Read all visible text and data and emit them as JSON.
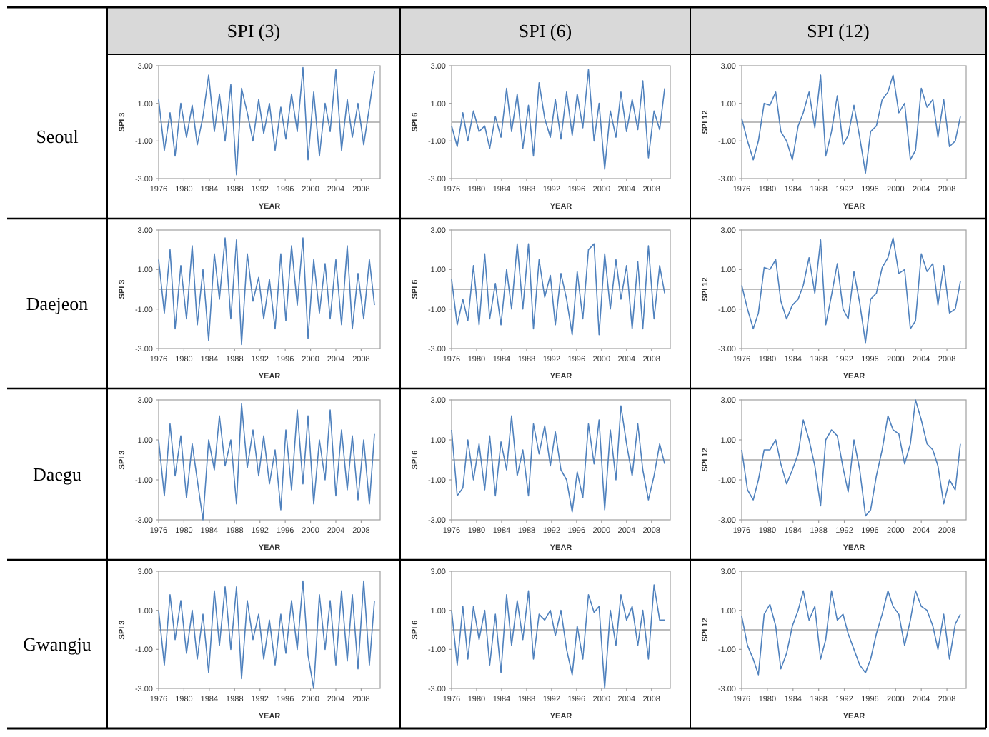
{
  "chart_data": [
    {
      "type": "line",
      "title": "SPI (3)",
      "annotations": [
        "Seoul"
      ],
      "xlabel": "YEAR",
      "ylabel": "SPI 3",
      "x": [
        1976,
        1976.9,
        1977.8,
        1978.6,
        1979.5,
        1980.4,
        1981.3,
        1982.1,
        1983,
        1983.9,
        1984.8,
        1985.6,
        1986.5,
        1987.4,
        1988.3,
        1989.1,
        1990,
        1990.9,
        1991.8,
        1992.6,
        1993.5,
        1994.4,
        1995.3,
        1996.1,
        1997,
        1997.9,
        1998.8,
        1999.6,
        2000.5,
        2001.4,
        2002.3,
        2003.1,
        2004,
        2004.9,
        2005.8,
        2006.6,
        2007.5,
        2008.4,
        2009.3,
        2010.1
      ],
      "xlim": [
        1976,
        2011
      ],
      "xticks": [
        1976,
        1980,
        1984,
        1988,
        1992,
        1996,
        2000,
        2004,
        2008
      ],
      "ylim": [
        -3,
        3
      ],
      "yticks": [
        {
          "value": -3,
          "label": "-3.00"
        },
        {
          "value": -1,
          "label": "-1.00"
        },
        {
          "value": 1,
          "label": "1.00"
        },
        {
          "value": 3,
          "label": "3.00"
        }
      ],
      "ref_lines": [
        {
          "axis": "y",
          "value": 0,
          "color": "#a6a6a6"
        }
      ],
      "series": [
        {
          "color": "#4f81bd",
          "values": [
            1.2,
            -1.5,
            0.5,
            -1.8,
            1.0,
            -0.8,
            0.9,
            -1.2,
            0.3,
            2.5,
            -0.5,
            1.5,
            -1.0,
            2.0,
            -2.8,
            1.8,
            0.5,
            -1.0,
            1.2,
            -0.6,
            1.0,
            -1.5,
            0.8,
            -0.9,
            1.5,
            -0.5,
            2.9,
            -2.0,
            1.6,
            -1.8,
            1.0,
            -0.5,
            2.8,
            -1.5,
            1.2,
            -0.8,
            1.0,
            -1.2,
            0.8,
            2.7
          ]
        }
      ]
    },
    {
      "type": "line",
      "title": "SPI (6)",
      "xlabel": "YEAR",
      "ylabel": "SPI 6",
      "x": [
        1976,
        1976.9,
        1977.8,
        1978.6,
        1979.5,
        1980.4,
        1981.3,
        1982.1,
        1983,
        1983.9,
        1984.8,
        1985.6,
        1986.5,
        1987.4,
        1988.3,
        1989.1,
        1990,
        1990.9,
        1991.8,
        1992.6,
        1993.5,
        1994.4,
        1995.3,
        1996.1,
        1997,
        1997.9,
        1998.8,
        1999.6,
        2000.5,
        2001.4,
        2002.3,
        2003.1,
        2004,
        2004.9,
        2005.8,
        2006.6,
        2007.5,
        2008.4,
        2009.3,
        2010.1
      ],
      "xlim": [
        1976,
        2011
      ],
      "xticks": [
        1976,
        1980,
        1984,
        1988,
        1992,
        1996,
        2000,
        2004,
        2008
      ],
      "ylim": [
        -3,
        3
      ],
      "yticks": [
        {
          "value": -3,
          "label": "-3.00"
        },
        {
          "value": -1,
          "label": "-1.00"
        },
        {
          "value": 1,
          "label": "1.00"
        },
        {
          "value": 3,
          "label": "3.00"
        }
      ],
      "ref_lines": [
        {
          "axis": "y",
          "value": 0,
          "color": "#a6a6a6"
        }
      ],
      "series": [
        {
          "color": "#4f81bd",
          "values": [
            -0.2,
            -1.3,
            0.5,
            -1.0,
            0.6,
            -0.5,
            -0.2,
            -1.4,
            0.3,
            -0.8,
            1.8,
            -0.5,
            1.5,
            -1.4,
            0.9,
            -1.8,
            2.1,
            0.2,
            -0.8,
            1.2,
            -0.9,
            1.6,
            -0.7,
            1.5,
            -0.3,
            2.8,
            -1.0,
            1.0,
            -2.5,
            0.6,
            -0.8,
            1.6,
            -0.5,
            1.2,
            -0.4,
            2.2,
            -1.9,
            0.6,
            -0.4,
            1.8
          ]
        }
      ]
    },
    {
      "type": "line",
      "title": "SPI (12)",
      "xlabel": "YEAR",
      "ylabel": "SPI 12",
      "x": [
        1976,
        1976.9,
        1977.8,
        1978.6,
        1979.5,
        1980.4,
        1981.3,
        1982.1,
        1983,
        1983.9,
        1984.8,
        1985.6,
        1986.5,
        1987.4,
        1988.3,
        1989.1,
        1990,
        1990.9,
        1991.8,
        1992.6,
        1993.5,
        1994.4,
        1995.3,
        1996.1,
        1997,
        1997.9,
        1998.8,
        1999.6,
        2000.5,
        2001.4,
        2002.3,
        2003.1,
        2004,
        2004.9,
        2005.8,
        2006.6,
        2007.5,
        2008.4,
        2009.3,
        2010.1
      ],
      "xlim": [
        1976,
        2011
      ],
      "xticks": [
        1976,
        1980,
        1984,
        1988,
        1992,
        1996,
        2000,
        2004,
        2008
      ],
      "ylim": [
        -3,
        3
      ],
      "yticks": [
        {
          "value": -3,
          "label": "-3.00"
        },
        {
          "value": -1,
          "label": "-1.00"
        },
        {
          "value": 1,
          "label": "1.00"
        },
        {
          "value": 3,
          "label": "3.00"
        }
      ],
      "ref_lines": [
        {
          "axis": "y",
          "value": 0,
          "color": "#a6a6a6"
        }
      ],
      "series": [
        {
          "color": "#4f81bd",
          "values": [
            0.2,
            -1.0,
            -2.0,
            -1.0,
            1.0,
            0.9,
            1.6,
            -0.5,
            -1.0,
            -2.0,
            -0.2,
            0.5,
            1.6,
            -0.3,
            2.5,
            -1.8,
            -0.5,
            1.4,
            -1.2,
            -0.7,
            0.9,
            -0.8,
            -2.7,
            -0.5,
            -0.2,
            1.2,
            1.6,
            2.5,
            0.5,
            1.0,
            -2.0,
            -1.5,
            1.8,
            0.8,
            1.2,
            -0.8,
            1.2,
            -1.3,
            -1.0,
            0.3
          ]
        }
      ]
    },
    {
      "type": "line",
      "annotations": [
        "Daejeon"
      ],
      "xlabel": "YEAR",
      "ylabel": "SPI 3",
      "x": [
        1976,
        1976.9,
        1977.8,
        1978.6,
        1979.5,
        1980.4,
        1981.3,
        1982.1,
        1983,
        1983.9,
        1984.8,
        1985.6,
        1986.5,
        1987.4,
        1988.3,
        1989.1,
        1990,
        1990.9,
        1991.8,
        1992.6,
        1993.5,
        1994.4,
        1995.3,
        1996.1,
        1997,
        1997.9,
        1998.8,
        1999.6,
        2000.5,
        2001.4,
        2002.3,
        2003.1,
        2004,
        2004.9,
        2005.8,
        2006.6,
        2007.5,
        2008.4,
        2009.3,
        2010.1
      ],
      "xlim": [
        1976,
        2011
      ],
      "xticks": [
        1976,
        1980,
        1984,
        1988,
        1992,
        1996,
        2000,
        2004,
        2008
      ],
      "ylim": [
        -3,
        3
      ],
      "yticks": [
        {
          "value": -3,
          "label": "-3.00"
        },
        {
          "value": -1,
          "label": "-1.00"
        },
        {
          "value": 1,
          "label": "1.00"
        },
        {
          "value": 3,
          "label": "3.00"
        }
      ],
      "ref_lines": [
        {
          "axis": "y",
          "value": 0,
          "color": "#a6a6a6"
        }
      ],
      "series": [
        {
          "color": "#4f81bd",
          "values": [
            1.5,
            -1.2,
            2.0,
            -2.0,
            1.2,
            -1.5,
            2.2,
            -1.8,
            1.0,
            -2.6,
            1.8,
            -0.5,
            2.6,
            -1.5,
            2.5,
            -2.8,
            1.8,
            -0.6,
            0.6,
            -1.5,
            0.5,
            -2.0,
            1.8,
            -1.6,
            2.2,
            -0.8,
            2.6,
            -2.5,
            1.5,
            -1.2,
            1.3,
            -1.5,
            1.5,
            -1.8,
            2.2,
            -2.0,
            0.8,
            -1.5,
            1.5,
            -0.8
          ]
        }
      ]
    },
    {
      "type": "line",
      "xlabel": "YEAR",
      "ylabel": "SPI 6",
      "x": [
        1976,
        1976.9,
        1977.8,
        1978.6,
        1979.5,
        1980.4,
        1981.3,
        1982.1,
        1983,
        1983.9,
        1984.8,
        1985.6,
        1986.5,
        1987.4,
        1988.3,
        1989.1,
        1990,
        1990.9,
        1991.8,
        1992.6,
        1993.5,
        1994.4,
        1995.3,
        1996.1,
        1997,
        1997.9,
        1998.8,
        1999.6,
        2000.5,
        2001.4,
        2002.3,
        2003.1,
        2004,
        2004.9,
        2005.8,
        2006.6,
        2007.5,
        2008.4,
        2009.3,
        2010.1
      ],
      "xlim": [
        1976,
        2011
      ],
      "xticks": [
        1976,
        1980,
        1984,
        1988,
        1992,
        1996,
        2000,
        2004,
        2008
      ],
      "ylim": [
        -3,
        3
      ],
      "yticks": [
        {
          "value": -3,
          "label": "-3.00"
        },
        {
          "value": -1,
          "label": "-1.00"
        },
        {
          "value": 1,
          "label": "1.00"
        },
        {
          "value": 3,
          "label": "3.00"
        }
      ],
      "ref_lines": [
        {
          "axis": "y",
          "value": 0,
          "color": "#a6a6a6"
        }
      ],
      "series": [
        {
          "color": "#4f81bd",
          "values": [
            0.5,
            -1.8,
            -0.5,
            -1.6,
            1.2,
            -1.8,
            1.8,
            -1.5,
            0.3,
            -1.8,
            1.0,
            -1.0,
            2.3,
            -1.0,
            2.3,
            -2.0,
            1.5,
            -0.4,
            0.7,
            -1.8,
            0.8,
            -0.5,
            -2.3,
            0.9,
            -1.5,
            2.0,
            2.3,
            -2.3,
            1.8,
            -1.0,
            1.5,
            -0.5,
            1.2,
            -2.0,
            1.4,
            -2.0,
            2.2,
            -1.5,
            1.2,
            -0.2
          ]
        }
      ]
    },
    {
      "type": "line",
      "xlabel": "YEAR",
      "ylabel": "SPI 12",
      "x": [
        1976,
        1976.9,
        1977.8,
        1978.6,
        1979.5,
        1980.4,
        1981.3,
        1982.1,
        1983,
        1983.9,
        1984.8,
        1985.6,
        1986.5,
        1987.4,
        1988.3,
        1989.1,
        1990,
        1990.9,
        1991.8,
        1992.6,
        1993.5,
        1994.4,
        1995.3,
        1996.1,
        1997,
        1997.9,
        1998.8,
        1999.6,
        2000.5,
        2001.4,
        2002.3,
        2003.1,
        2004,
        2004.9,
        2005.8,
        2006.6,
        2007.5,
        2008.4,
        2009.3,
        2010.1
      ],
      "xlim": [
        1976,
        2011
      ],
      "xticks": [
        1976,
        1980,
        1984,
        1988,
        1992,
        1996,
        2000,
        2004,
        2008
      ],
      "ylim": [
        -3,
        3
      ],
      "yticks": [
        {
          "value": -3,
          "label": "-3.00"
        },
        {
          "value": -1,
          "label": "-1.00"
        },
        {
          "value": 1,
          "label": "1.00"
        },
        {
          "value": 3,
          "label": "3.00"
        }
      ],
      "ref_lines": [
        {
          "axis": "y",
          "value": 0,
          "color": "#a6a6a6"
        }
      ],
      "series": [
        {
          "color": "#4f81bd",
          "values": [
            0.2,
            -1.0,
            -2.0,
            -1.2,
            1.1,
            1.0,
            1.5,
            -0.6,
            -1.5,
            -0.8,
            -0.5,
            0.2,
            1.6,
            -0.2,
            2.5,
            -1.8,
            -0.3,
            1.3,
            -1.0,
            -1.5,
            0.9,
            -0.7,
            -2.7,
            -0.5,
            -0.2,
            1.1,
            1.6,
            2.6,
            0.8,
            1.0,
            -2.0,
            -1.6,
            1.8,
            0.9,
            1.3,
            -0.8,
            1.2,
            -1.2,
            -1.0,
            0.4
          ]
        }
      ]
    },
    {
      "type": "line",
      "annotations": [
        "Daegu"
      ],
      "xlabel": "YEAR",
      "ylabel": "SPI 3",
      "x": [
        1976,
        1976.9,
        1977.8,
        1978.6,
        1979.5,
        1980.4,
        1981.3,
        1982.1,
        1983,
        1983.9,
        1984.8,
        1985.6,
        1986.5,
        1987.4,
        1988.3,
        1989.1,
        1990,
        1990.9,
        1991.8,
        1992.6,
        1993.5,
        1994.4,
        1995.3,
        1996.1,
        1997,
        1997.9,
        1998.8,
        1999.6,
        2000.5,
        2001.4,
        2002.3,
        2003.1,
        2004,
        2004.9,
        2005.8,
        2006.6,
        2007.5,
        2008.4,
        2009.3,
        2010.1
      ],
      "xlim": [
        1976,
        2011
      ],
      "xticks": [
        1976,
        1980,
        1984,
        1988,
        1992,
        1996,
        2000,
        2004,
        2008
      ],
      "ylim": [
        -3,
        3
      ],
      "yticks": [
        {
          "value": -3,
          "label": "-3.00"
        },
        {
          "value": -1,
          "label": "-1.00"
        },
        {
          "value": 1,
          "label": "1.00"
        },
        {
          "value": 3,
          "label": "3.00"
        }
      ],
      "ref_lines": [
        {
          "axis": "y",
          "value": 0,
          "color": "#a6a6a6"
        }
      ],
      "series": [
        {
          "color": "#4f81bd",
          "values": [
            1.0,
            -1.8,
            1.8,
            -0.8,
            1.2,
            -1.9,
            0.8,
            -1.0,
            -3.0,
            1.0,
            -0.5,
            2.2,
            -0.3,
            1.0,
            -2.2,
            2.8,
            -0.4,
            1.5,
            -0.8,
            1.2,
            -1.2,
            0.5,
            -2.5,
            1.5,
            -1.5,
            2.5,
            -1.2,
            2.2,
            -2.2,
            1.0,
            -1.0,
            2.5,
            -1.8,
            1.5,
            -1.5,
            1.2,
            -2.0,
            1.0,
            -2.2,
            1.3
          ]
        }
      ]
    },
    {
      "type": "line",
      "xlabel": "YEAR",
      "ylabel": "SPI 6",
      "x": [
        1976,
        1976.9,
        1977.8,
        1978.6,
        1979.5,
        1980.4,
        1981.3,
        1982.1,
        1983,
        1983.9,
        1984.8,
        1985.6,
        1986.5,
        1987.4,
        1988.3,
        1989.1,
        1990,
        1990.9,
        1991.8,
        1992.6,
        1993.5,
        1994.4,
        1995.3,
        1996.1,
        1997,
        1997.9,
        1998.8,
        1999.6,
        2000.5,
        2001.4,
        2002.3,
        2003.1,
        2004,
        2004.9,
        2005.8,
        2006.6,
        2007.5,
        2008.4,
        2009.3,
        2010.1
      ],
      "xlim": [
        1976,
        2011
      ],
      "xticks": [
        1976,
        1980,
        1984,
        1988,
        1992,
        1996,
        2000,
        2004,
        2008
      ],
      "ylim": [
        -3,
        3
      ],
      "yticks": [
        {
          "value": -3,
          "label": "-3.00"
        },
        {
          "value": -1,
          "label": "-1.00"
        },
        {
          "value": 1,
          "label": "1.00"
        },
        {
          "value": 3,
          "label": "3.00"
        }
      ],
      "ref_lines": [
        {
          "axis": "y",
          "value": 0,
          "color": "#a6a6a6"
        }
      ],
      "series": [
        {
          "color": "#4f81bd",
          "values": [
            1.5,
            -1.8,
            -1.4,
            1.0,
            -1.0,
            0.8,
            -1.5,
            1.2,
            -1.8,
            0.9,
            -0.5,
            2.2,
            -0.8,
            0.5,
            -1.8,
            1.8,
            0.3,
            1.7,
            -0.3,
            1.4,
            -0.5,
            -1.0,
            -2.6,
            -0.6,
            -1.9,
            1.8,
            -0.2,
            2.0,
            -2.5,
            1.5,
            -1.0,
            2.7,
            0.8,
            -0.8,
            1.8,
            -0.5,
            -2.0,
            -0.8,
            0.8,
            -0.2
          ]
        }
      ]
    },
    {
      "type": "line",
      "xlabel": "YEAR",
      "ylabel": "SPI 12",
      "x": [
        1976,
        1976.9,
        1977.8,
        1978.6,
        1979.5,
        1980.4,
        1981.3,
        1982.1,
        1983,
        1983.9,
        1984.8,
        1985.6,
        1986.5,
        1987.4,
        1988.3,
        1989.1,
        1990,
        1990.9,
        1991.8,
        1992.6,
        1993.5,
        1994.4,
        1995.3,
        1996.1,
        1997,
        1997.9,
        1998.8,
        1999.6,
        2000.5,
        2001.4,
        2002.3,
        2003.1,
        2004,
        2004.9,
        2005.8,
        2006.6,
        2007.5,
        2008.4,
        2009.3,
        2010.1
      ],
      "xlim": [
        1976,
        2011
      ],
      "xticks": [
        1976,
        1980,
        1984,
        1988,
        1992,
        1996,
        2000,
        2004,
        2008
      ],
      "ylim": [
        -3,
        3
      ],
      "yticks": [
        {
          "value": -3,
          "label": "-3.00"
        },
        {
          "value": -1,
          "label": "-1.00"
        },
        {
          "value": 1,
          "label": "1.00"
        },
        {
          "value": 3,
          "label": "3.00"
        }
      ],
      "ref_lines": [
        {
          "axis": "y",
          "value": 0,
          "color": "#a6a6a6"
        }
      ],
      "series": [
        {
          "color": "#4f81bd",
          "values": [
            0.5,
            -1.5,
            -2.0,
            -1.0,
            0.5,
            0.5,
            1.0,
            -0.2,
            -1.2,
            -0.5,
            0.3,
            2.0,
            1.0,
            -0.3,
            -2.3,
            1.0,
            1.5,
            1.2,
            -0.4,
            -1.6,
            1.0,
            -0.5,
            -2.8,
            -2.5,
            -0.8,
            0.5,
            2.2,
            1.5,
            1.3,
            -0.2,
            0.8,
            3.0,
            2.0,
            0.8,
            0.5,
            -0.3,
            -2.2,
            -1.0,
            -1.5,
            0.8
          ]
        }
      ]
    },
    {
      "type": "line",
      "annotations": [
        "Gwangju"
      ],
      "xlabel": "YEAR",
      "ylabel": "SPI 3",
      "x": [
        1976,
        1976.9,
        1977.8,
        1978.6,
        1979.5,
        1980.4,
        1981.3,
        1982.1,
        1983,
        1983.9,
        1984.8,
        1985.6,
        1986.5,
        1987.4,
        1988.3,
        1989.1,
        1990,
        1990.9,
        1991.8,
        1992.6,
        1993.5,
        1994.4,
        1995.3,
        1996.1,
        1997,
        1997.9,
        1998.8,
        1999.6,
        2000.5,
        2001.4,
        2002.3,
        2003.1,
        2004,
        2004.9,
        2005.8,
        2006.6,
        2007.5,
        2008.4,
        2009.3,
        2010.1
      ],
      "xlim": [
        1976,
        2011
      ],
      "xticks": [
        1976,
        1980,
        1984,
        1988,
        1992,
        1996,
        2000,
        2004,
        2008
      ],
      "ylim": [
        -3,
        3
      ],
      "yticks": [
        {
          "value": -3,
          "label": "-3.00"
        },
        {
          "value": -1,
          "label": "-1.00"
        },
        {
          "value": 1,
          "label": "1.00"
        },
        {
          "value": 3,
          "label": "3.00"
        }
      ],
      "ref_lines": [
        {
          "axis": "y",
          "value": 0,
          "color": "#a6a6a6"
        }
      ],
      "series": [
        {
          "color": "#4f81bd",
          "values": [
            1.0,
            -1.8,
            1.8,
            -0.5,
            1.5,
            -1.2,
            1.0,
            -1.5,
            0.8,
            -2.2,
            2.0,
            -0.8,
            2.2,
            -1.0,
            2.2,
            -2.5,
            1.5,
            -0.5,
            0.8,
            -1.5,
            0.5,
            -1.8,
            0.8,
            -1.2,
            1.5,
            -1.0,
            2.5,
            -1.3,
            -3.0,
            1.8,
            -1.0,
            1.5,
            -1.8,
            2.0,
            -1.6,
            1.8,
            -2.0,
            2.5,
            -1.8,
            1.5
          ]
        }
      ]
    },
    {
      "type": "line",
      "xlabel": "YEAR",
      "ylabel": "SPI 6",
      "x": [
        1976,
        1976.9,
        1977.8,
        1978.6,
        1979.5,
        1980.4,
        1981.3,
        1982.1,
        1983,
        1983.9,
        1984.8,
        1985.6,
        1986.5,
        1987.4,
        1988.3,
        1989.1,
        1990,
        1990.9,
        1991.8,
        1992.6,
        1993.5,
        1994.4,
        1995.3,
        1996.1,
        1997,
        1997.9,
        1998.8,
        1999.6,
        2000.5,
        2001.4,
        2002.3,
        2003.1,
        2004,
        2004.9,
        2005.8,
        2006.6,
        2007.5,
        2008.4,
        2009.3,
        2010.1
      ],
      "xlim": [
        1976,
        2011
      ],
      "xticks": [
        1976,
        1980,
        1984,
        1988,
        1992,
        1996,
        2000,
        2004,
        2008
      ],
      "ylim": [
        -3,
        3
      ],
      "yticks": [
        {
          "value": -3,
          "label": "-3.00"
        },
        {
          "value": -1,
          "label": "-1.00"
        },
        {
          "value": 1,
          "label": "1.00"
        },
        {
          "value": 3,
          "label": "3.00"
        }
      ],
      "ref_lines": [
        {
          "axis": "y",
          "value": 0,
          "color": "#a6a6a6"
        }
      ],
      "series": [
        {
          "color": "#4f81bd",
          "values": [
            1.0,
            -1.8,
            1.2,
            -1.5,
            1.2,
            -0.5,
            1.0,
            -1.8,
            0.8,
            -2.2,
            1.8,
            -0.8,
            1.5,
            -0.5,
            2.0,
            -1.5,
            0.8,
            0.5,
            1.0,
            -0.3,
            1.0,
            -1.0,
            -2.3,
            0.2,
            -1.5,
            1.8,
            0.9,
            1.2,
            -3.0,
            1.0,
            -0.8,
            1.8,
            0.5,
            1.2,
            -0.8,
            1.0,
            -1.5,
            2.3,
            0.5,
            0.5
          ]
        }
      ]
    },
    {
      "type": "line",
      "xlabel": "YEAR",
      "ylabel": "SPI 12",
      "x": [
        1976,
        1976.9,
        1977.8,
        1978.6,
        1979.5,
        1980.4,
        1981.3,
        1982.1,
        1983,
        1983.9,
        1984.8,
        1985.6,
        1986.5,
        1987.4,
        1988.3,
        1989.1,
        1990,
        1990.9,
        1991.8,
        1992.6,
        1993.5,
        1994.4,
        1995.3,
        1996.1,
        1997,
        1997.9,
        1998.8,
        1999.6,
        2000.5,
        2001.4,
        2002.3,
        2003.1,
        2004,
        2004.9,
        2005.8,
        2006.6,
        2007.5,
        2008.4,
        2009.3,
        2010.1
      ],
      "xlim": [
        1976,
        2011
      ],
      "xticks": [
        1976,
        1980,
        1984,
        1988,
        1992,
        1996,
        2000,
        2004,
        2008
      ],
      "ylim": [
        -3,
        3
      ],
      "yticks": [
        {
          "value": -3,
          "label": "-3.00"
        },
        {
          "value": -1,
          "label": "-1.00"
        },
        {
          "value": 1,
          "label": "1.00"
        },
        {
          "value": 3,
          "label": "3.00"
        }
      ],
      "ref_lines": [
        {
          "axis": "y",
          "value": 0,
          "color": "#a6a6a6"
        }
      ],
      "series": [
        {
          "color": "#4f81bd",
          "values": [
            0.7,
            -0.8,
            -1.5,
            -2.3,
            0.8,
            1.3,
            0.2,
            -2.0,
            -1.2,
            0.2,
            1.0,
            2.0,
            0.5,
            1.2,
            -1.5,
            -0.5,
            2.0,
            0.5,
            0.8,
            -0.2,
            -1.0,
            -1.8,
            -2.2,
            -1.5,
            -0.2,
            0.8,
            2.0,
            1.2,
            0.8,
            -0.8,
            0.5,
            2.0,
            1.2,
            1.0,
            0.2,
            -1.0,
            0.8,
            -1.5,
            0.3,
            0.8
          ]
        }
      ]
    }
  ]
}
